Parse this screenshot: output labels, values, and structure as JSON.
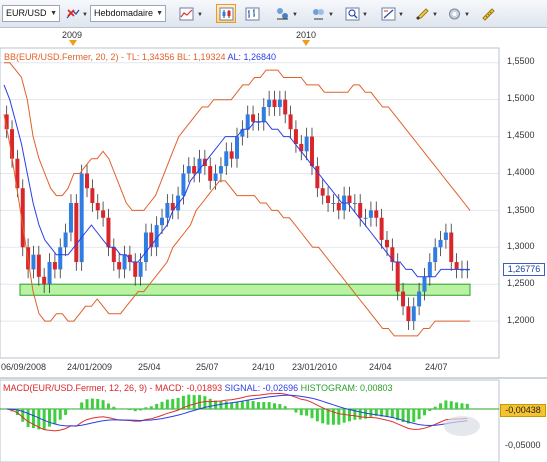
{
  "toolbar": {
    "symbol": "EUR/USD",
    "period": "Hebdomadaire",
    "buttons": [
      {
        "name": "remove-symbol-icon"
      },
      {
        "name": "line-chart-icon"
      },
      {
        "name": "candlestick-chart-icon"
      },
      {
        "name": "bar-chart-icon"
      },
      {
        "name": "compare-icon"
      },
      {
        "name": "indicators-icon"
      },
      {
        "name": "zoom-icon"
      },
      {
        "name": "drawing-tools-icon"
      },
      {
        "name": "edit-icon"
      },
      {
        "name": "settings-icon"
      },
      {
        "name": "ruler-icon"
      }
    ]
  },
  "years": [
    "2009",
    "2010"
  ],
  "main_legend": {
    "bb_label": "BB(EUR/USD.Fermer, 20, 2)",
    "tl": "TL: 1,34356",
    "bl": "BL: 1,19324",
    "al": "AL: 1,26840"
  },
  "price_axis": [
    "1,5500",
    "1,5000",
    "1,4500",
    "1,4000",
    "1,3500",
    "1,3000",
    "1,2500",
    "1,2000"
  ],
  "current_price": "1,26776",
  "date_axis": [
    "06/09/2008",
    "24/01/2009",
    "25/04",
    "25/07",
    "24/10",
    "23/01/2010",
    "24/04",
    "24/07"
  ],
  "macd_legend": {
    "label": "MACD(EUR/USD.Fermer, 12, 26, 9)",
    "macd": "MACD: -0,01893",
    "signal": "SIGNAL: -0,02696",
    "histogram": "HISTOGRAM: 0,00803"
  },
  "macd_axis": [
    "-0,05000"
  ],
  "macd_current": "-0,00438",
  "colors": {
    "bollinger": "#e0602a",
    "average": "#2b3ee6",
    "candle_up": "#2f7de0",
    "candle_down": "#d9262a",
    "support_zone": "#b9f2a3",
    "histogram": "#3ecf3e",
    "signal": "#2b3ee6",
    "macd": "#e0302a"
  },
  "chart_data": {
    "type": "candlestick",
    "y_range": [
      1.15,
      1.57
    ],
    "closes": [
      1.46,
      1.42,
      1.38,
      1.3,
      1.27,
      1.29,
      1.26,
      1.25,
      1.28,
      1.27,
      1.3,
      1.32,
      1.36,
      1.28,
      1.4,
      1.38,
      1.36,
      1.35,
      1.34,
      1.3,
      1.28,
      1.27,
      1.29,
      1.28,
      1.26,
      1.28,
      1.32,
      1.3,
      1.33,
      1.34,
      1.36,
      1.35,
      1.37,
      1.4,
      1.41,
      1.4,
      1.42,
      1.41,
      1.39,
      1.4,
      1.41,
      1.43,
      1.42,
      1.45,
      1.46,
      1.48,
      1.47,
      1.47,
      1.49,
      1.5,
      1.49,
      1.5,
      1.48,
      1.46,
      1.44,
      1.43,
      1.45,
      1.41,
      1.38,
      1.37,
      1.36,
      1.36,
      1.35,
      1.37,
      1.36,
      1.36,
      1.34,
      1.34,
      1.35,
      1.34,
      1.31,
      1.3,
      1.28,
      1.24,
      1.22,
      1.2,
      1.22,
      1.24,
      1.26,
      1.28,
      1.3,
      1.31,
      1.32,
      1.28,
      1.27,
      1.27,
      1.27
    ],
    "bollinger_top": [
      1.55,
      1.55,
      1.54,
      1.53,
      1.5,
      1.45,
      1.42,
      1.4,
      1.38,
      1.37,
      1.37,
      1.38,
      1.4,
      1.4,
      1.41,
      1.42,
      1.42,
      1.43,
      1.42,
      1.4,
      1.38,
      1.36,
      1.35,
      1.35,
      1.35,
      1.36,
      1.37,
      1.39,
      1.41,
      1.43,
      1.45,
      1.46,
      1.47,
      1.48,
      1.49,
      1.49,
      1.5,
      1.5,
      1.5,
      1.5,
      1.51,
      1.52,
      1.52,
      1.53,
      1.53,
      1.54,
      1.54,
      1.54,
      1.53,
      1.53,
      1.53,
      1.53,
      1.52,
      1.52,
      1.52,
      1.51,
      1.51,
      1.51,
      1.51,
      1.51,
      1.52,
      1.52,
      1.51,
      1.51,
      1.5,
      1.49,
      1.49,
      1.48,
      1.47,
      1.46,
      1.45,
      1.44,
      1.43,
      1.42,
      1.41,
      1.4,
      1.39,
      1.38,
      1.37,
      1.36,
      1.35
    ],
    "bollinger_mid": [
      1.52,
      1.5,
      1.47,
      1.44,
      1.4,
      1.36,
      1.33,
      1.31,
      1.3,
      1.29,
      1.29,
      1.29,
      1.3,
      1.31,
      1.32,
      1.33,
      1.32,
      1.31,
      1.3,
      1.3,
      1.29,
      1.29,
      1.28,
      1.28,
      1.29,
      1.3,
      1.31,
      1.32,
      1.33,
      1.35,
      1.36,
      1.37,
      1.39,
      1.4,
      1.41,
      1.42,
      1.43,
      1.44,
      1.45,
      1.45,
      1.45,
      1.46,
      1.46,
      1.47,
      1.47,
      1.47,
      1.46,
      1.46,
      1.45,
      1.45,
      1.44,
      1.43,
      1.42,
      1.41,
      1.4,
      1.39,
      1.38,
      1.37,
      1.36,
      1.36,
      1.35,
      1.34,
      1.33,
      1.32,
      1.31,
      1.3,
      1.29,
      1.28,
      1.28,
      1.27,
      1.27,
      1.26,
      1.26,
      1.26,
      1.26,
      1.27,
      1.27,
      1.27,
      1.27,
      1.27,
      1.27
    ],
    "bollinger_bot": [
      1.48,
      1.44,
      1.39,
      1.34,
      1.29,
      1.24,
      1.21,
      1.2,
      1.2,
      1.21,
      1.21,
      1.2,
      1.2,
      1.21,
      1.22,
      1.22,
      1.23,
      1.22,
      1.21,
      1.21,
      1.21,
      1.22,
      1.23,
      1.24,
      1.24,
      1.25,
      1.26,
      1.27,
      1.28,
      1.3,
      1.31,
      1.32,
      1.33,
      1.35,
      1.36,
      1.37,
      1.38,
      1.39,
      1.39,
      1.38,
      1.37,
      1.37,
      1.37,
      1.37,
      1.36,
      1.36,
      1.35,
      1.35,
      1.34,
      1.34,
      1.33,
      1.32,
      1.31,
      1.3,
      1.3,
      1.29,
      1.28,
      1.27,
      1.26,
      1.25,
      1.24,
      1.23,
      1.22,
      1.21,
      1.2,
      1.19,
      1.19,
      1.18,
      1.18,
      1.18,
      1.18,
      1.18,
      1.19,
      1.19,
      1.2,
      1.2,
      1.2,
      1.2,
      1.2,
      1.2,
      1.2
    ],
    "support_zone": [
      1.235,
      1.25
    ]
  }
}
